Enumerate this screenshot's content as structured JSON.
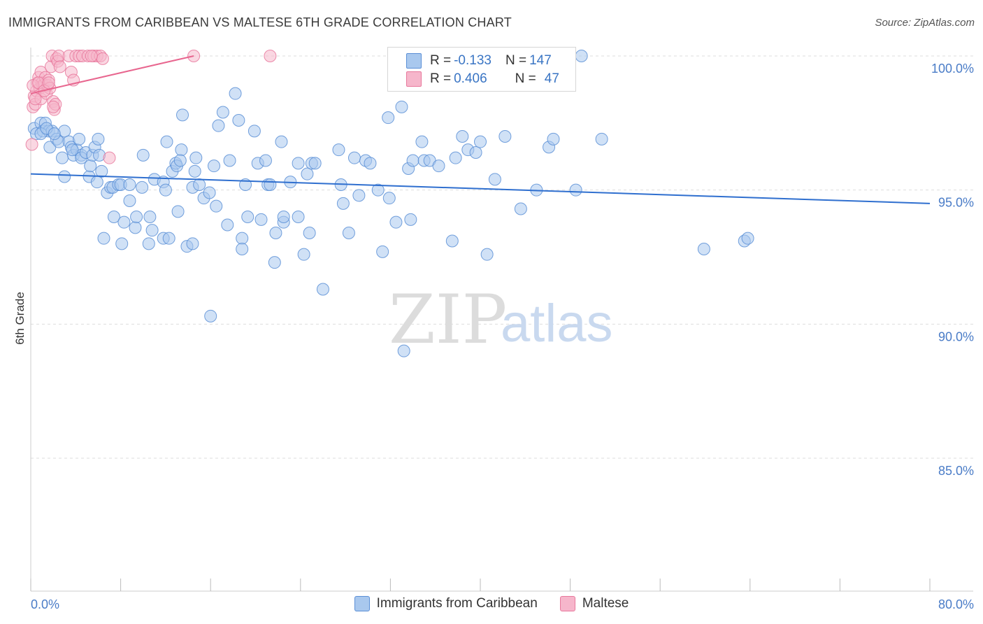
{
  "title": "IMMIGRANTS FROM CARIBBEAN VS MALTESE 6TH GRADE CORRELATION CHART",
  "source": "Source: ZipAtlas.com",
  "watermark": {
    "zip": "ZIP",
    "atlas": "atlas"
  },
  "legend": {
    "r_label": "R =",
    "n_label": "N =",
    "series": [
      {
        "r": "-0.133",
        "n": "147"
      },
      {
        "r": "0.406",
        "n": "47"
      }
    ]
  },
  "colors": {
    "blue_fill": "#a9c8ee",
    "blue_stroke": "#5b8fd6",
    "blue_line": "#2f6fcf",
    "pink_fill": "#f6b6cb",
    "pink_stroke": "#e8789c",
    "pink_line": "#e8668f",
    "tick_text": "#4a7cc7",
    "grid": "#dddddd"
  },
  "chart_data": {
    "type": "scatter",
    "title": "IMMIGRANTS FROM CARIBBEAN VS MALTESE 6TH GRADE CORRELATION CHART",
    "xlabel": "",
    "ylabel": "6th Grade",
    "xlim": [
      0,
      80
    ],
    "ylim": [
      80.5,
      100.5
    ],
    "x_tick_labels": [
      "0.0%",
      "80.0%"
    ],
    "y_ticks": [
      {
        "value": 100,
        "label": "100.0%"
      },
      {
        "value": 95,
        "label": "95.0%"
      },
      {
        "value": 90,
        "label": "90.0%"
      },
      {
        "value": 85,
        "label": "85.0%"
      }
    ],
    "series": [
      {
        "name": "Immigrants from Caribbean",
        "trend": {
          "x": [
            0,
            80
          ],
          "y": [
            95.6,
            94.5
          ]
        },
        "points": [
          [
            0.3,
            97.3
          ],
          [
            0.5,
            97.1
          ],
          [
            0.9,
            97.5
          ],
          [
            1.1,
            97.2
          ],
          [
            1.3,
            97.5
          ],
          [
            1.6,
            97.2
          ],
          [
            1.7,
            96.6
          ],
          [
            1.9,
            97.2
          ],
          [
            2.3,
            96.9
          ],
          [
            2.5,
            96.8
          ],
          [
            2.8,
            96.2
          ],
          [
            3.0,
            97.2
          ],
          [
            3.0,
            95.5
          ],
          [
            3.4,
            96.8
          ],
          [
            3.6,
            96.6
          ],
          [
            3.8,
            96.3
          ],
          [
            4.1,
            96.5
          ],
          [
            4.3,
            96.9
          ],
          [
            4.5,
            96.3
          ],
          [
            4.5,
            96.2
          ],
          [
            4.9,
            96.4
          ],
          [
            5.2,
            95.5
          ],
          [
            5.3,
            95.9
          ],
          [
            5.5,
            96.3
          ],
          [
            5.7,
            96.6
          ],
          [
            6.0,
            96.9
          ],
          [
            5.9,
            95.3
          ],
          [
            6.3,
            95.7
          ],
          [
            6.5,
            93.2
          ],
          [
            6.8,
            94.9
          ],
          [
            7.1,
            95.1
          ],
          [
            7.3,
            95.1
          ],
          [
            7.4,
            94.0
          ],
          [
            7.8,
            95.2
          ],
          [
            8.0,
            95.2
          ],
          [
            8.1,
            93.0
          ],
          [
            8.3,
            93.8
          ],
          [
            8.8,
            94.6
          ],
          [
            8.8,
            95.2
          ],
          [
            9.3,
            93.6
          ],
          [
            9.9,
            95.1
          ],
          [
            9.4,
            94.0
          ],
          [
            10.0,
            96.3
          ],
          [
            10.5,
            93.0
          ],
          [
            10.6,
            94.0
          ],
          [
            10.8,
            93.5
          ],
          [
            11.0,
            95.4
          ],
          [
            11.8,
            93.2
          ],
          [
            11.8,
            95.3
          ],
          [
            12.0,
            95.0
          ],
          [
            12.1,
            96.8
          ],
          [
            12.3,
            93.2
          ],
          [
            12.6,
            95.7
          ],
          [
            12.9,
            96.0
          ],
          [
            13.0,
            95.9
          ],
          [
            13.1,
            94.2
          ],
          [
            13.4,
            96.5
          ],
          [
            13.5,
            97.8
          ],
          [
            13.9,
            92.9
          ],
          [
            14.4,
            93.0
          ],
          [
            14.4,
            95.1
          ],
          [
            14.6,
            95.7
          ],
          [
            14.7,
            96.2
          ],
          [
            15.0,
            95.2
          ],
          [
            15.4,
            94.7
          ],
          [
            15.9,
            94.9
          ],
          [
            16.0,
            90.3
          ],
          [
            16.3,
            95.9
          ],
          [
            16.5,
            94.4
          ],
          [
            16.7,
            97.4
          ],
          [
            17.1,
            97.9
          ],
          [
            17.5,
            93.7
          ],
          [
            17.7,
            96.1
          ],
          [
            18.2,
            98.6
          ],
          [
            18.5,
            97.6
          ],
          [
            18.8,
            93.2
          ],
          [
            18.8,
            92.8
          ],
          [
            19.1,
            95.2
          ],
          [
            19.3,
            94.0
          ],
          [
            19.9,
            97.2
          ],
          [
            20.2,
            96.0
          ],
          [
            20.5,
            93.9
          ],
          [
            20.9,
            96.1
          ],
          [
            21.1,
            95.2
          ],
          [
            21.3,
            95.2
          ],
          [
            21.7,
            92.3
          ],
          [
            21.8,
            93.4
          ],
          [
            22.3,
            96.8
          ],
          [
            22.5,
            93.8
          ],
          [
            22.5,
            94.0
          ],
          [
            23.1,
            95.3
          ],
          [
            23.8,
            96.0
          ],
          [
            23.8,
            94.0
          ],
          [
            24.3,
            92.6
          ],
          [
            24.6,
            95.6
          ],
          [
            24.8,
            93.4
          ],
          [
            25.0,
            96.0
          ],
          [
            25.3,
            96.0
          ],
          [
            26.0,
            91.3
          ],
          [
            27.4,
            96.5
          ],
          [
            27.6,
            95.2
          ],
          [
            27.8,
            94.5
          ],
          [
            28.3,
            93.4
          ],
          [
            28.8,
            96.2
          ],
          [
            29.2,
            94.8
          ],
          [
            29.8,
            96.1
          ],
          [
            30.2,
            96.0
          ],
          [
            30.9,
            95.0
          ],
          [
            31.3,
            92.7
          ],
          [
            31.8,
            97.7
          ],
          [
            31.9,
            94.7
          ],
          [
            32.5,
            93.8
          ],
          [
            33.0,
            98.1
          ],
          [
            33.2,
            89.0
          ],
          [
            33.6,
            95.8
          ],
          [
            33.8,
            93.9
          ],
          [
            34.0,
            96.1
          ],
          [
            34.8,
            96.8
          ],
          [
            35.0,
            96.1
          ],
          [
            35.5,
            96.1
          ],
          [
            36.3,
            95.9
          ],
          [
            37.5,
            93.1
          ],
          [
            37.8,
            96.2
          ],
          [
            38.4,
            97.0
          ],
          [
            38.9,
            96.5
          ],
          [
            39.6,
            96.4
          ],
          [
            40.0,
            96.8
          ],
          [
            40.6,
            92.6
          ],
          [
            41.3,
            95.4
          ],
          [
            42.2,
            97.0
          ],
          [
            43.6,
            94.3
          ],
          [
            44.2,
            100.0
          ],
          [
            45.0,
            95.0
          ],
          [
            46.1,
            96.6
          ],
          [
            46.5,
            96.9
          ],
          [
            48.5,
            95.0
          ],
          [
            49.0,
            100.0
          ],
          [
            50.8,
            96.9
          ],
          [
            59.9,
            92.8
          ],
          [
            63.5,
            93.1
          ],
          [
            63.8,
            93.2
          ],
          [
            0.9,
            97.1
          ],
          [
            1.4,
            97.3
          ],
          [
            2.1,
            97.1
          ],
          [
            3.7,
            96.5
          ],
          [
            6.1,
            96.3
          ],
          [
            13.3,
            96.1
          ]
        ]
      },
      {
        "name": "Maltese",
        "trend": {
          "x": [
            0,
            14.5
          ],
          "y": [
            98.6,
            100.0
          ]
        },
        "points": [
          [
            0.1,
            96.7
          ],
          [
            0.2,
            98.1
          ],
          [
            0.3,
            98.5
          ],
          [
            0.4,
            98.2
          ],
          [
            0.5,
            98.7
          ],
          [
            0.6,
            99.0
          ],
          [
            0.7,
            99.2
          ],
          [
            0.8,
            98.8
          ],
          [
            0.9,
            98.4
          ],
          [
            0.9,
            99.4
          ],
          [
            1.0,
            99.0
          ],
          [
            1.1,
            98.9
          ],
          [
            1.3,
            99.2
          ],
          [
            1.4,
            98.6
          ],
          [
            1.5,
            98.9
          ],
          [
            1.6,
            99.1
          ],
          [
            1.7,
            98.8
          ],
          [
            1.8,
            99.6
          ],
          [
            1.9,
            100.0
          ],
          [
            2.0,
            98.3
          ],
          [
            2.1,
            98.0
          ],
          [
            2.2,
            98.2
          ],
          [
            2.3,
            99.9
          ],
          [
            2.4,
            99.8
          ],
          [
            2.5,
            100.0
          ],
          [
            2.6,
            99.6
          ],
          [
            3.4,
            100.0
          ],
          [
            3.6,
            99.4
          ],
          [
            3.8,
            99.1
          ],
          [
            4.0,
            100.0
          ],
          [
            4.3,
            100.0
          ],
          [
            4.6,
            100.0
          ],
          [
            5.1,
            100.0
          ],
          [
            5.6,
            100.0
          ],
          [
            5.9,
            100.0
          ],
          [
            6.2,
            100.0
          ],
          [
            6.4,
            99.9
          ],
          [
            7.0,
            96.2
          ],
          [
            14.5,
            100.0
          ],
          [
            21.3,
            100.0
          ],
          [
            0.2,
            98.9
          ],
          [
            0.4,
            98.4
          ],
          [
            0.7,
            99.0
          ],
          [
            1.2,
            98.7
          ],
          [
            1.6,
            99.0
          ],
          [
            2.0,
            98.1
          ],
          [
            5.4,
            100.0
          ]
        ]
      }
    ]
  },
  "bottom_legend": [
    "Immigrants from Caribbean",
    "Maltese"
  ]
}
